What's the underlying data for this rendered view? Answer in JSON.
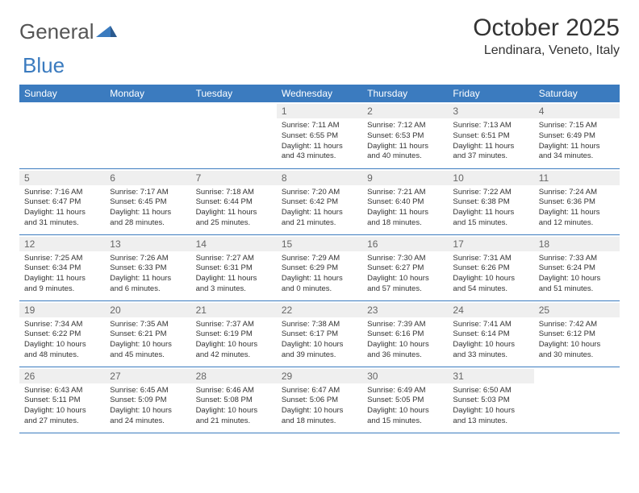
{
  "logo": {
    "text1": "General",
    "text2": "Blue",
    "tri_color": "#3b7bbf"
  },
  "title": "October 2025",
  "location": "Lendinara, Veneto, Italy",
  "colors": {
    "header_bg": "#3b7bbf",
    "header_fg": "#ffffff",
    "day_bg": "#efefef",
    "day_fg": "#666666",
    "border": "#3b7bbf",
    "text": "#333333"
  },
  "weekdays": [
    "Sunday",
    "Monday",
    "Tuesday",
    "Wednesday",
    "Thursday",
    "Friday",
    "Saturday"
  ],
  "weeks": [
    [
      {
        "n": "",
        "sr": "",
        "ss": "",
        "dl": ""
      },
      {
        "n": "",
        "sr": "",
        "ss": "",
        "dl": ""
      },
      {
        "n": "",
        "sr": "",
        "ss": "",
        "dl": ""
      },
      {
        "n": "1",
        "sr": "7:11 AM",
        "ss": "6:55 PM",
        "dl": "11 hours and 43 minutes."
      },
      {
        "n": "2",
        "sr": "7:12 AM",
        "ss": "6:53 PM",
        "dl": "11 hours and 40 minutes."
      },
      {
        "n": "3",
        "sr": "7:13 AM",
        "ss": "6:51 PM",
        "dl": "11 hours and 37 minutes."
      },
      {
        "n": "4",
        "sr": "7:15 AM",
        "ss": "6:49 PM",
        "dl": "11 hours and 34 minutes."
      }
    ],
    [
      {
        "n": "5",
        "sr": "7:16 AM",
        "ss": "6:47 PM",
        "dl": "11 hours and 31 minutes."
      },
      {
        "n": "6",
        "sr": "7:17 AM",
        "ss": "6:45 PM",
        "dl": "11 hours and 28 minutes."
      },
      {
        "n": "7",
        "sr": "7:18 AM",
        "ss": "6:44 PM",
        "dl": "11 hours and 25 minutes."
      },
      {
        "n": "8",
        "sr": "7:20 AM",
        "ss": "6:42 PM",
        "dl": "11 hours and 21 minutes."
      },
      {
        "n": "9",
        "sr": "7:21 AM",
        "ss": "6:40 PM",
        "dl": "11 hours and 18 minutes."
      },
      {
        "n": "10",
        "sr": "7:22 AM",
        "ss": "6:38 PM",
        "dl": "11 hours and 15 minutes."
      },
      {
        "n": "11",
        "sr": "7:24 AM",
        "ss": "6:36 PM",
        "dl": "11 hours and 12 minutes."
      }
    ],
    [
      {
        "n": "12",
        "sr": "7:25 AM",
        "ss": "6:34 PM",
        "dl": "11 hours and 9 minutes."
      },
      {
        "n": "13",
        "sr": "7:26 AM",
        "ss": "6:33 PM",
        "dl": "11 hours and 6 minutes."
      },
      {
        "n": "14",
        "sr": "7:27 AM",
        "ss": "6:31 PM",
        "dl": "11 hours and 3 minutes."
      },
      {
        "n": "15",
        "sr": "7:29 AM",
        "ss": "6:29 PM",
        "dl": "11 hours and 0 minutes."
      },
      {
        "n": "16",
        "sr": "7:30 AM",
        "ss": "6:27 PM",
        "dl": "10 hours and 57 minutes."
      },
      {
        "n": "17",
        "sr": "7:31 AM",
        "ss": "6:26 PM",
        "dl": "10 hours and 54 minutes."
      },
      {
        "n": "18",
        "sr": "7:33 AM",
        "ss": "6:24 PM",
        "dl": "10 hours and 51 minutes."
      }
    ],
    [
      {
        "n": "19",
        "sr": "7:34 AM",
        "ss": "6:22 PM",
        "dl": "10 hours and 48 minutes."
      },
      {
        "n": "20",
        "sr": "7:35 AM",
        "ss": "6:21 PM",
        "dl": "10 hours and 45 minutes."
      },
      {
        "n": "21",
        "sr": "7:37 AM",
        "ss": "6:19 PM",
        "dl": "10 hours and 42 minutes."
      },
      {
        "n": "22",
        "sr": "7:38 AM",
        "ss": "6:17 PM",
        "dl": "10 hours and 39 minutes."
      },
      {
        "n": "23",
        "sr": "7:39 AM",
        "ss": "6:16 PM",
        "dl": "10 hours and 36 minutes."
      },
      {
        "n": "24",
        "sr": "7:41 AM",
        "ss": "6:14 PM",
        "dl": "10 hours and 33 minutes."
      },
      {
        "n": "25",
        "sr": "7:42 AM",
        "ss": "6:12 PM",
        "dl": "10 hours and 30 minutes."
      }
    ],
    [
      {
        "n": "26",
        "sr": "6:43 AM",
        "ss": "5:11 PM",
        "dl": "10 hours and 27 minutes."
      },
      {
        "n": "27",
        "sr": "6:45 AM",
        "ss": "5:09 PM",
        "dl": "10 hours and 24 minutes."
      },
      {
        "n": "28",
        "sr": "6:46 AM",
        "ss": "5:08 PM",
        "dl": "10 hours and 21 minutes."
      },
      {
        "n": "29",
        "sr": "6:47 AM",
        "ss": "5:06 PM",
        "dl": "10 hours and 18 minutes."
      },
      {
        "n": "30",
        "sr": "6:49 AM",
        "ss": "5:05 PM",
        "dl": "10 hours and 15 minutes."
      },
      {
        "n": "31",
        "sr": "6:50 AM",
        "ss": "5:03 PM",
        "dl": "10 hours and 13 minutes."
      },
      {
        "n": "",
        "sr": "",
        "ss": "",
        "dl": ""
      }
    ]
  ],
  "labels": {
    "sunrise": "Sunrise:",
    "sunset": "Sunset:",
    "daylight": "Daylight:"
  }
}
